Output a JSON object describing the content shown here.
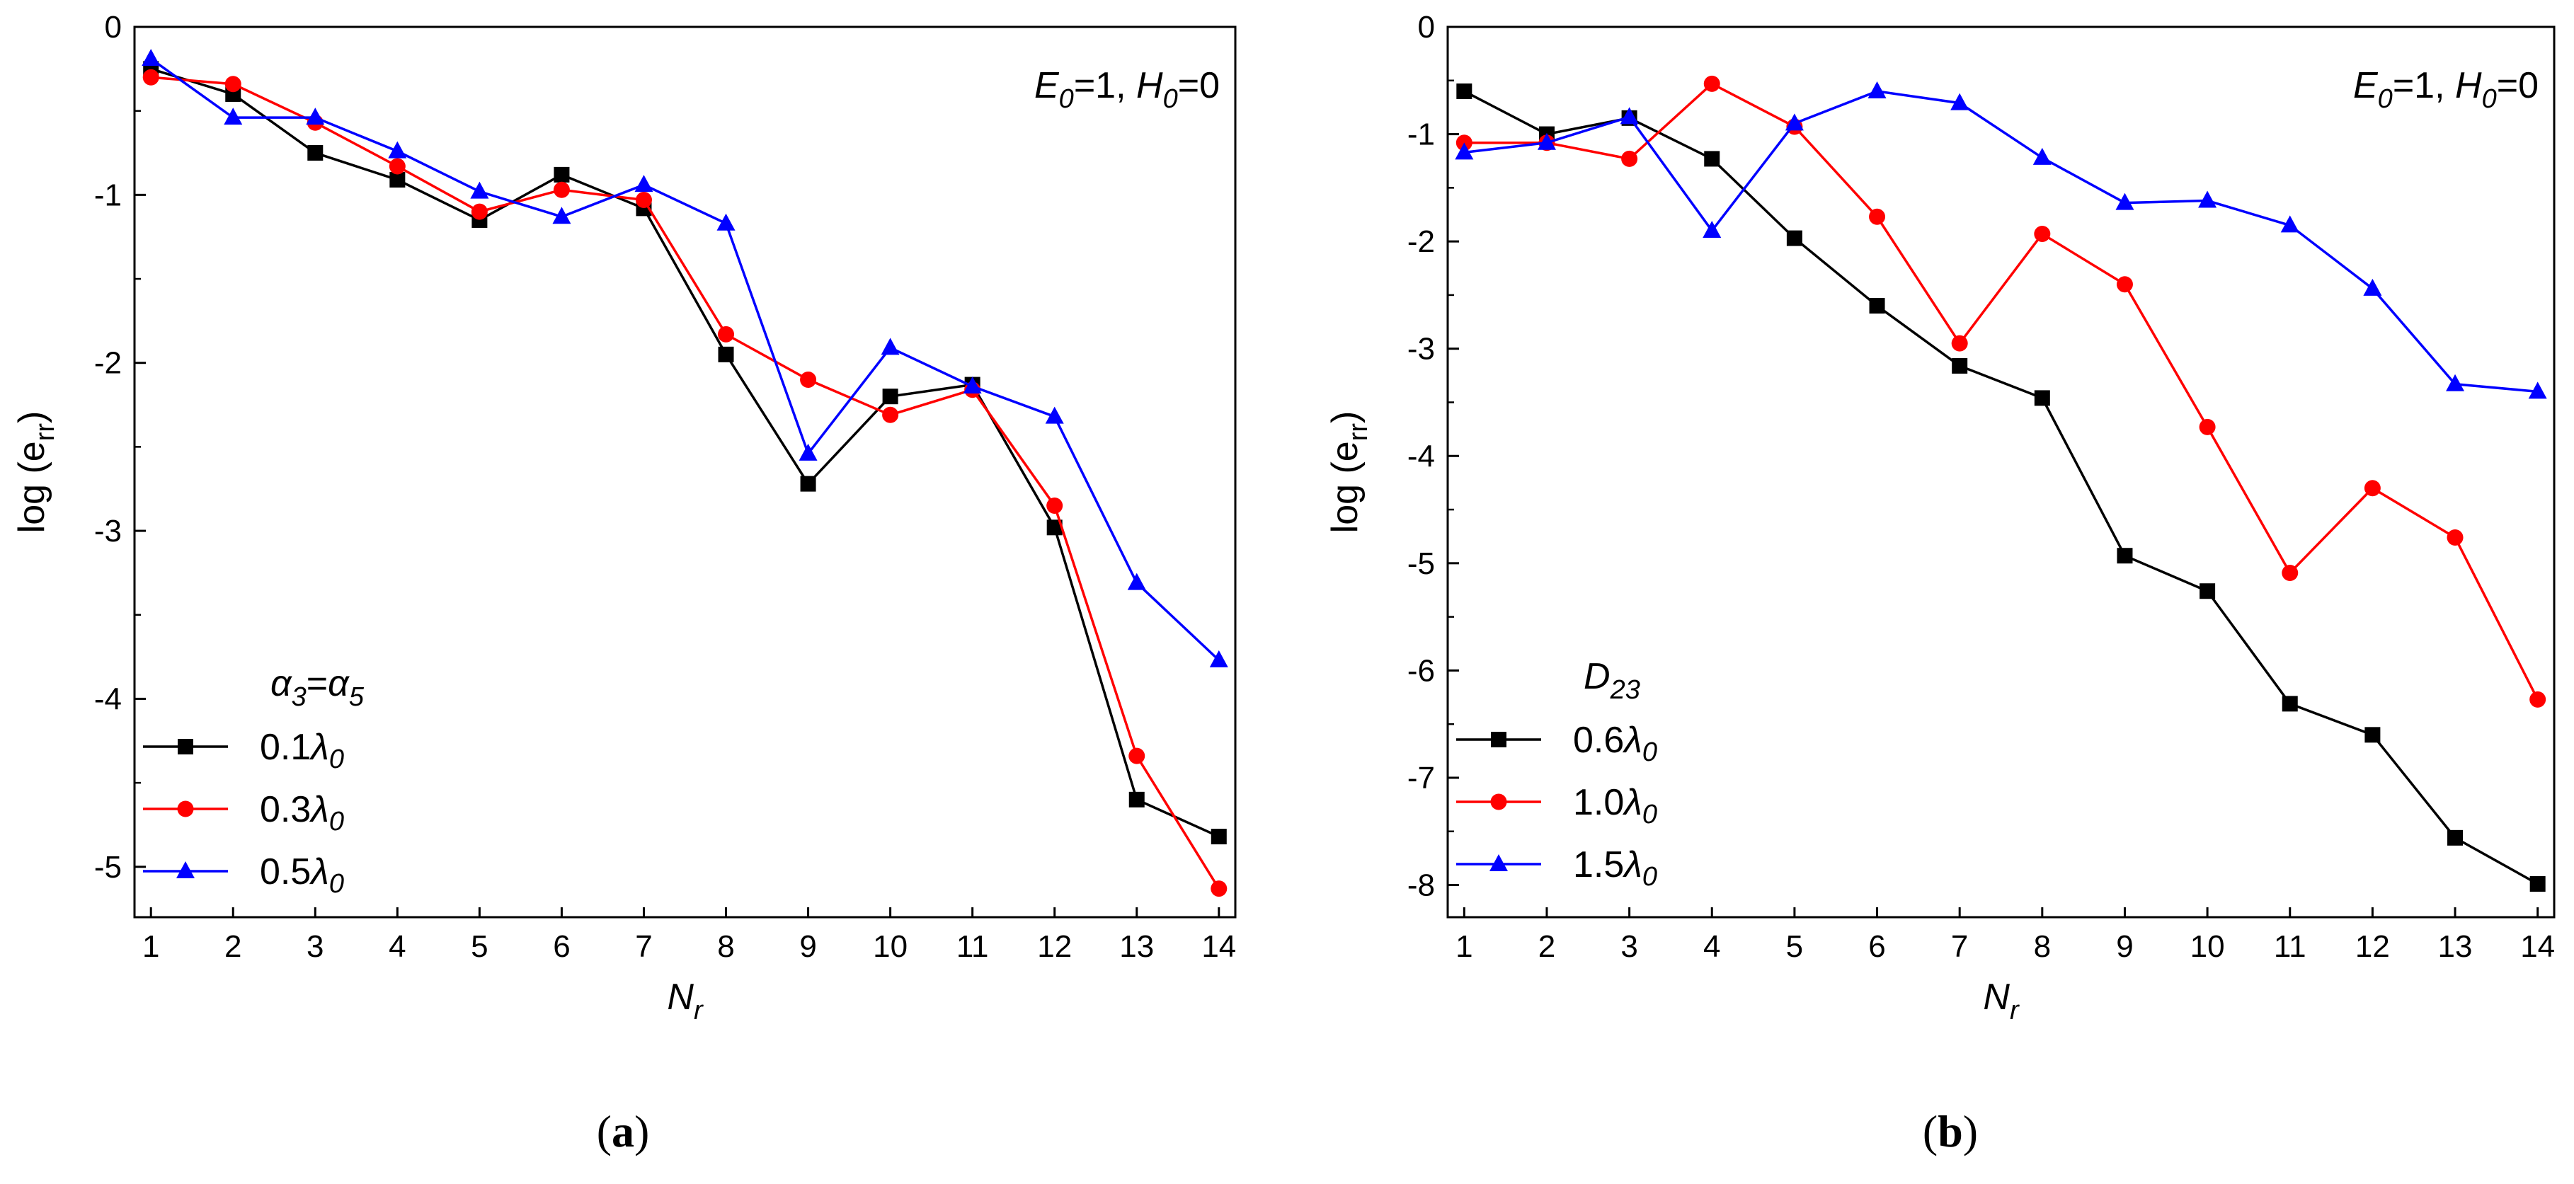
{
  "chart_data": [
    {
      "type": "line",
      "panel_label": "(a)",
      "annotation": "E0=1, H0=0",
      "xlabel": "Nr",
      "ylabel": "log (err)",
      "xlim": [
        0.8,
        14.2
      ],
      "ylim": [
        -5.3,
        0
      ],
      "xticks": [
        1,
        2,
        3,
        4,
        5,
        6,
        7,
        8,
        9,
        10,
        11,
        12,
        13,
        14
      ],
      "yticks": [
        0,
        -1,
        -2,
        -3,
        -4,
        -5
      ],
      "ytick_labels": [
        "0",
        "-1",
        "-2",
        "-3",
        "-4",
        "-5"
      ],
      "grid": false,
      "legend_title": "α3=α5",
      "legend_position": "bottom-left",
      "x": [
        1,
        2,
        3,
        4,
        5,
        6,
        7,
        8,
        9,
        10,
        11,
        12,
        13,
        14
      ],
      "series": [
        {
          "name": "0.1λ0",
          "color": "#000000",
          "marker": "square",
          "values": [
            -0.25,
            -0.4,
            -0.75,
            -0.91,
            -1.15,
            -0.88,
            -1.08,
            -1.95,
            -2.72,
            -2.2,
            -2.13,
            -2.98,
            -4.6,
            -4.82
          ]
        },
        {
          "name": "0.3λ0",
          "color": "#ff0000",
          "marker": "circle",
          "values": [
            -0.3,
            -0.34,
            -0.57,
            -0.83,
            -1.1,
            -0.97,
            -1.03,
            -1.83,
            -2.1,
            -2.31,
            -2.16,
            -2.85,
            -4.34,
            -5.13
          ]
        },
        {
          "name": "0.5λ0",
          "color": "#0000ff",
          "marker": "triangle",
          "values": [
            -0.19,
            -0.54,
            -0.54,
            -0.74,
            -0.98,
            -1.13,
            -0.94,
            -1.17,
            -2.54,
            -1.91,
            -2.14,
            -2.32,
            -3.31,
            -3.77
          ]
        }
      ]
    },
    {
      "type": "line",
      "panel_label": "(b)",
      "annotation": "E0=1, H0=0",
      "xlabel": "Nr",
      "ylabel": "log (err)",
      "xlim": [
        0.8,
        14.2
      ],
      "ylim": [
        -8.3,
        0
      ],
      "xticks": [
        1,
        2,
        3,
        4,
        5,
        6,
        7,
        8,
        9,
        10,
        11,
        12,
        13,
        14
      ],
      "yticks": [
        0,
        -1,
        -2,
        -3,
        -4,
        -5,
        -6,
        -7,
        -8
      ],
      "ytick_labels": [
        "0",
        "-1",
        "-2",
        "-3",
        "-4",
        "-5",
        "-6",
        "-7",
        "-8"
      ],
      "grid": false,
      "legend_title": "D23",
      "legend_position": "bottom-left",
      "x": [
        1,
        2,
        3,
        4,
        5,
        6,
        7,
        8,
        9,
        10,
        11,
        12,
        13,
        14
      ],
      "series": [
        {
          "name": "0.6λ0",
          "color": "#000000",
          "marker": "square",
          "values": [
            -0.6,
            -1.0,
            -0.85,
            -1.23,
            -1.97,
            -2.6,
            -3.16,
            -3.46,
            -4.93,
            -5.26,
            -6.31,
            -6.6,
            -7.56,
            -7.99
          ]
        },
        {
          "name": "1.0λ0",
          "color": "#ff0000",
          "marker": "circle",
          "values": [
            -1.08,
            -1.08,
            -1.23,
            -0.53,
            -0.93,
            -1.77,
            -2.95,
            -1.93,
            -2.4,
            -3.73,
            -5.09,
            -4.3,
            -4.76,
            -6.27
          ]
        },
        {
          "name": "1.5λ0",
          "color": "#0000ff",
          "marker": "triangle",
          "values": [
            -1.17,
            -1.08,
            -0.84,
            -1.9,
            -0.9,
            -0.6,
            -0.71,
            -1.22,
            -1.64,
            -1.62,
            -1.85,
            -2.44,
            -3.33,
            -3.4
          ]
        }
      ]
    }
  ]
}
